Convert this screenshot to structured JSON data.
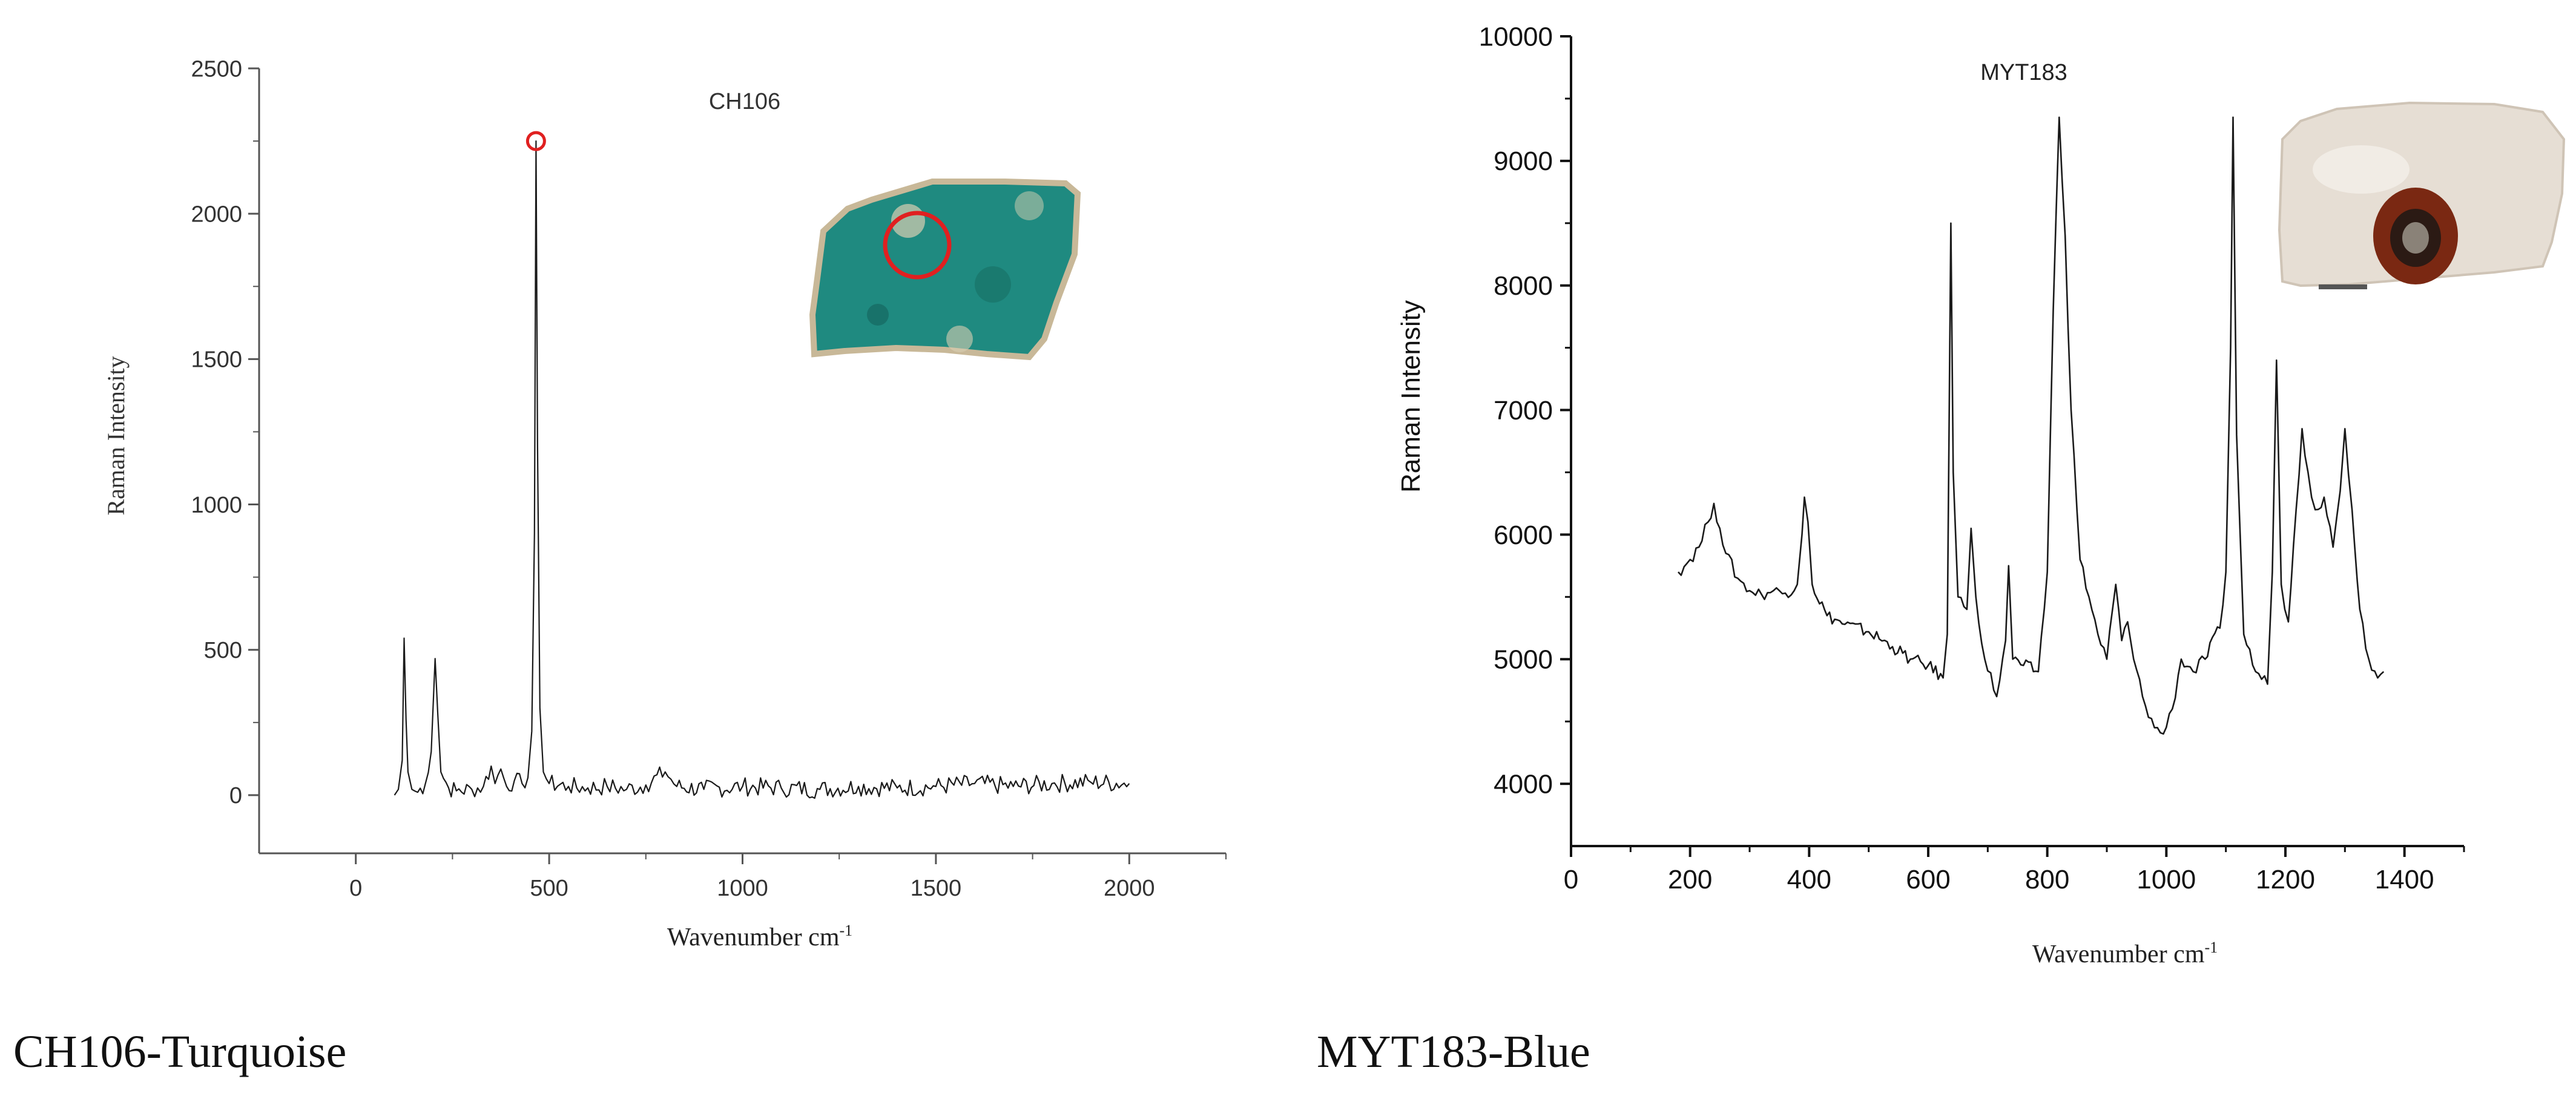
{
  "chart_data": [
    {
      "type": "line",
      "title": "CH106",
      "xlabel": "Wavenumber cm",
      "xlabel_sup": "-1",
      "ylabel": "Raman Intensity",
      "xlim": [
        -250,
        2250
      ],
      "ylim": [
        -200,
        2500
      ],
      "xticks": [
        0,
        500,
        1000,
        1500,
        2000
      ],
      "yticks": [
        0,
        500,
        1000,
        1500,
        2000,
        2500
      ],
      "grid": false,
      "series": [
        {
          "color": "#1a1a1a",
          "points": [
            [
              100,
              0
            ],
            [
              110,
              20
            ],
            [
              120,
              120
            ],
            [
              125,
              540
            ],
            [
              130,
              260
            ],
            [
              135,
              80
            ],
            [
              145,
              20
            ],
            [
              160,
              10
            ],
            [
              180,
              40
            ],
            [
              195,
              150
            ],
            [
              205,
              470
            ],
            [
              212,
              280
            ],
            [
              220,
              80
            ],
            [
              240,
              25
            ],
            [
              260,
              15
            ],
            [
              300,
              20
            ],
            [
              330,
              30
            ],
            [
              350,
              100
            ],
            [
              360,
              40
            ],
            [
              375,
              90
            ],
            [
              390,
              30
            ],
            [
              410,
              50
            ],
            [
              430,
              40
            ],
            [
              445,
              60
            ],
            [
              455,
              220
            ],
            [
              462,
              900
            ],
            [
              466,
              2250
            ],
            [
              470,
              1200
            ],
            [
              476,
              300
            ],
            [
              485,
              80
            ],
            [
              500,
              40
            ],
            [
              550,
              30
            ],
            [
              600,
              25
            ],
            [
              650,
              30
            ],
            [
              700,
              20
            ],
            [
              750,
              35
            ],
            [
              800,
              80
            ],
            [
              830,
              30
            ],
            [
              900,
              20
            ],
            [
              1000,
              30
            ],
            [
              1100,
              25
            ],
            [
              1200,
              20
            ],
            [
              1300,
              30
            ],
            [
              1400,
              25
            ],
            [
              1500,
              30
            ],
            [
              1600,
              40
            ],
            [
              1700,
              30
            ],
            [
              1800,
              40
            ],
            [
              1900,
              45
            ],
            [
              2000,
              40
            ]
          ]
        }
      ],
      "marker": {
        "x": 466,
        "y": 2250,
        "shape": "open-circle",
        "color": "#e02020"
      },
      "inset": {
        "description": "turquoise-fragment",
        "color": "#1f8a80"
      }
    },
    {
      "type": "line",
      "title": "MYT183",
      "xlabel": "Wavenumber cm",
      "xlabel_sup": "-1",
      "ylabel": "Raman Intensity",
      "xlim": [
        0,
        1500
      ],
      "ylim": [
        3500,
        10000
      ],
      "xticks": [
        0,
        200,
        400,
        600,
        800,
        1000,
        1200,
        1400
      ],
      "yticks": [
        4000,
        5000,
        6000,
        7000,
        8000,
        9000,
        10000
      ],
      "grid": false,
      "series": [
        {
          "color": "#1a1a1a",
          "points": [
            [
              180,
              5700
            ],
            [
              200,
              5800
            ],
            [
              215,
              5900
            ],
            [
              230,
              6100
            ],
            [
              240,
              6250
            ],
            [
              250,
              6050
            ],
            [
              260,
              5850
            ],
            [
              280,
              5650
            ],
            [
              300,
              5550
            ],
            [
              320,
              5520
            ],
            [
              340,
              5550
            ],
            [
              360,
              5530
            ],
            [
              380,
              5600
            ],
            [
              388,
              6000
            ],
            [
              392,
              6300
            ],
            [
              398,
              6100
            ],
            [
              405,
              5600
            ],
            [
              430,
              5350
            ],
            [
              460,
              5280
            ],
            [
              500,
              5220
            ],
            [
              540,
              5100
            ],
            [
              570,
              5000
            ],
            [
              600,
              4950
            ],
            [
              625,
              4850
            ],
            [
              632,
              5200
            ],
            [
              638,
              8500
            ],
            [
              642,
              6500
            ],
            [
              650,
              5500
            ],
            [
              665,
              5400
            ],
            [
              672,
              6050
            ],
            [
              680,
              5500
            ],
            [
              695,
              5000
            ],
            [
              715,
              4700
            ],
            [
              730,
              5150
            ],
            [
              735,
              5750
            ],
            [
              742,
              5000
            ],
            [
              760,
              4950
            ],
            [
              785,
              4900
            ],
            [
              800,
              5700
            ],
            [
              810,
              7800
            ],
            [
              820,
              9350
            ],
            [
              830,
              8400
            ],
            [
              840,
              7000
            ],
            [
              855,
              5800
            ],
            [
              870,
              5500
            ],
            [
              885,
              5200
            ],
            [
              900,
              5000
            ],
            [
              915,
              5600
            ],
            [
              925,
              5150
            ],
            [
              935,
              5300
            ],
            [
              945,
              5000
            ],
            [
              960,
              4700
            ],
            [
              980,
              4450
            ],
            [
              995,
              4400
            ],
            [
              1010,
              4600
            ],
            [
              1025,
              5000
            ],
            [
              1045,
              4900
            ],
            [
              1065,
              5000
            ],
            [
              1090,
              5250
            ],
            [
              1100,
              5700
            ],
            [
              1108,
              7500
            ],
            [
              1112,
              9350
            ],
            [
              1118,
              6800
            ],
            [
              1130,
              5200
            ],
            [
              1150,
              4900
            ],
            [
              1170,
              4800
            ],
            [
              1178,
              5700
            ],
            [
              1185,
              7400
            ],
            [
              1193,
              5600
            ],
            [
              1205,
              5300
            ],
            [
              1218,
              6200
            ],
            [
              1228,
              6850
            ],
            [
              1238,
              6500
            ],
            [
              1250,
              6200
            ],
            [
              1265,
              6300
            ],
            [
              1280,
              5900
            ],
            [
              1292,
              6350
            ],
            [
              1300,
              6850
            ],
            [
              1312,
              6200
            ],
            [
              1325,
              5400
            ],
            [
              1340,
              5000
            ],
            [
              1355,
              4850
            ],
            [
              1365,
              4900
            ]
          ]
        }
      ],
      "inset": {
        "description": "white-bead-with-dark-red-eye",
        "color": "#e6ded4"
      }
    }
  ],
  "captions": {
    "left": "CH106-Turquoise",
    "right": "MYT183-Blue"
  }
}
